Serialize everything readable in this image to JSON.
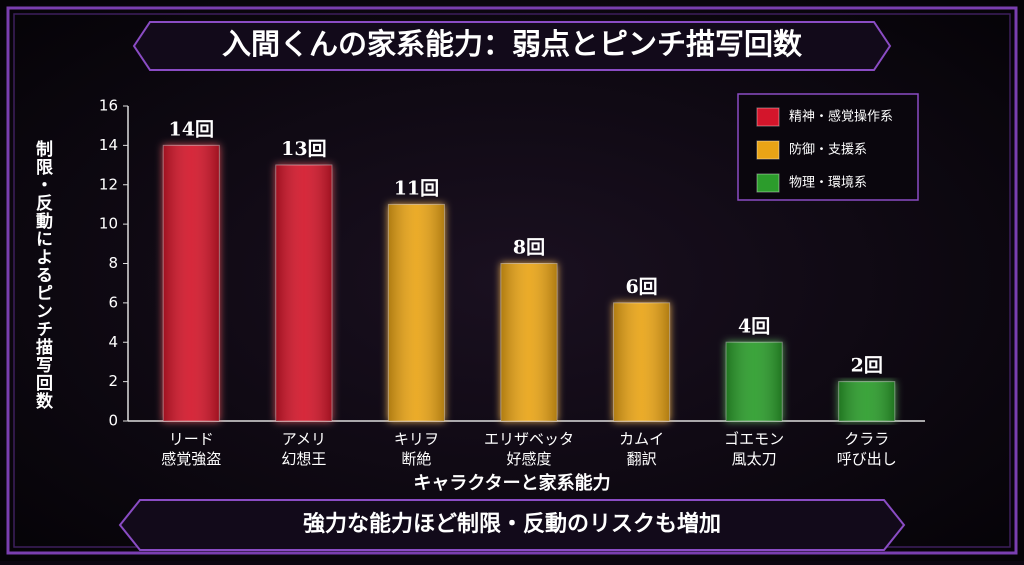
{
  "chart_data": {
    "type": "bar",
    "title": "入間くんの家系能力：弱点とピンチ描写回数",
    "y_label": "制限・反動によるピンチ描写回数",
    "x_label": "キャラクターと家系能力",
    "annotation": "強力な能力ほど制限・反動のリスクも増加",
    "categories": [
      [
        "リード",
        "感覚強盗"
      ],
      [
        "アメリ",
        "幻想王"
      ],
      [
        "キリヲ",
        "断絶"
      ],
      [
        "エリザベッタ",
        "好感度"
      ],
      [
        "カムイ",
        "翻訳"
      ],
      [
        "ゴエモン",
        "風太刀"
      ],
      [
        "クララ",
        "呼び出し"
      ]
    ],
    "series": [
      {
        "name": "精神・感覚操作系",
        "color": "#d3152b",
        "values": [
          14,
          13,
          null,
          null,
          null,
          null,
          null
        ],
        "value_labels": [
          "14回",
          "13回",
          null,
          null,
          null,
          null,
          null
        ]
      },
      {
        "name": "防御・支援系",
        "color": "#e9a416",
        "values": [
          null,
          null,
          11,
          8,
          6,
          null,
          null
        ],
        "value_labels": [
          null,
          null,
          "11回",
          "8回",
          "6回",
          null,
          null
        ]
      },
      {
        "name": "物理・環境系",
        "color": "#2c9c2c",
        "values": [
          null,
          null,
          null,
          null,
          null,
          4,
          2
        ],
        "value_labels": [
          null,
          null,
          null,
          null,
          null,
          "4回",
          "2回"
        ]
      }
    ],
    "ylim": [
      0,
      16
    ],
    "yticks": [
      0,
      2,
      4,
      6,
      8,
      10,
      12,
      14,
      16
    ],
    "grid": false,
    "legend": "top-right"
  }
}
